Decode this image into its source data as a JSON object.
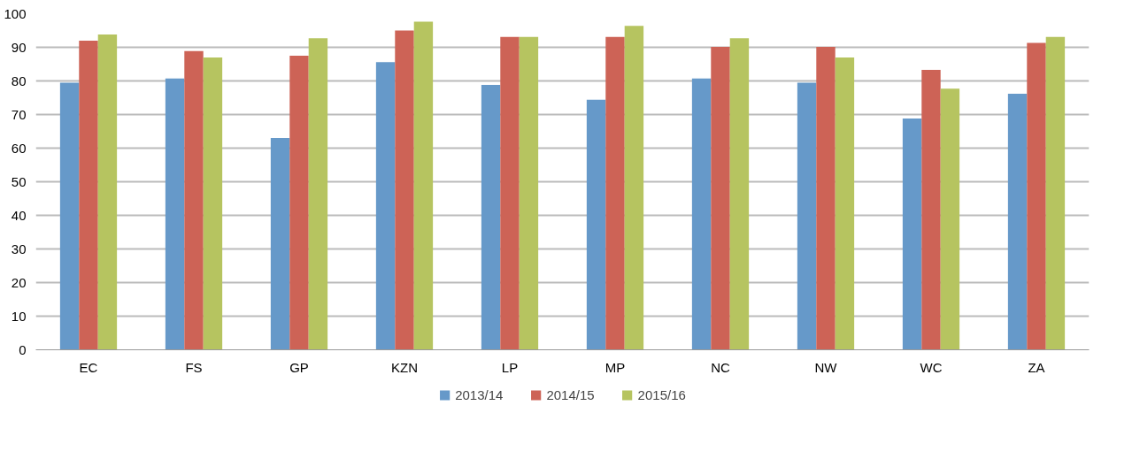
{
  "chart_data": {
    "type": "bar",
    "categories": [
      "EC",
      "FS",
      "GP",
      "KZN",
      "LP",
      "MP",
      "NC",
      "NW",
      "WC",
      "ZA"
    ],
    "series": [
      {
        "name": "2013/14",
        "color": "#6699c9",
        "values": [
          79.5,
          80.7,
          63,
          85.6,
          78.8,
          74.4,
          80.7,
          79.5,
          68.8,
          76.2
        ]
      },
      {
        "name": "2014/15",
        "color": "#cd6356",
        "values": [
          92.0,
          88.9,
          87.5,
          95.0,
          93.1,
          93.1,
          90.1,
          90.1,
          83.3,
          91.3
        ]
      },
      {
        "name": "2015/16",
        "color": "#b6c460",
        "values": [
          93.8,
          87.0,
          92.7,
          97.6,
          93.1,
          96.4,
          92.7,
          87.0,
          77.7,
          93.1
        ]
      }
    ],
    "ylim": [
      0,
      100
    ],
    "yticks": [
      0,
      10,
      20,
      30,
      40,
      50,
      60,
      70,
      80,
      90,
      100
    ],
    "grid": "y",
    "legend": "bottom"
  }
}
